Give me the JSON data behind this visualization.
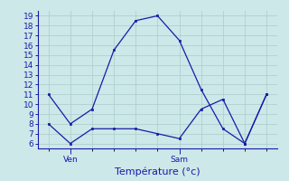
{
  "x": [
    0,
    1,
    2,
    3,
    4,
    5,
    6,
    7,
    8,
    9,
    10
  ],
  "line1": [
    11,
    8,
    9.5,
    15.5,
    18.5,
    19,
    16.5,
    11.5,
    7.5,
    6,
    11
  ],
  "line2": [
    8,
    6,
    7.5,
    7.5,
    7.5,
    7.0,
    6.5,
    9.5,
    10.5,
    6,
    11
  ],
  "ylim_min": 5.5,
  "ylim_max": 19.5,
  "xlim_min": -0.5,
  "xlim_max": 10.5,
  "yticks": [
    6,
    7,
    8,
    9,
    10,
    11,
    12,
    13,
    14,
    15,
    16,
    17,
    18,
    19
  ],
  "xtick_positions": [
    1,
    6
  ],
  "xtick_labels": [
    "Ven",
    "Sam"
  ],
  "xlabel": "Température (°c)",
  "line_color": "#1a1aaa",
  "bg_color": "#cce8e8",
  "grid_color": "#aacccc",
  "axis_color": "#1a1aaa",
  "xlabel_fontsize": 8,
  "tick_fontsize": 6.5
}
